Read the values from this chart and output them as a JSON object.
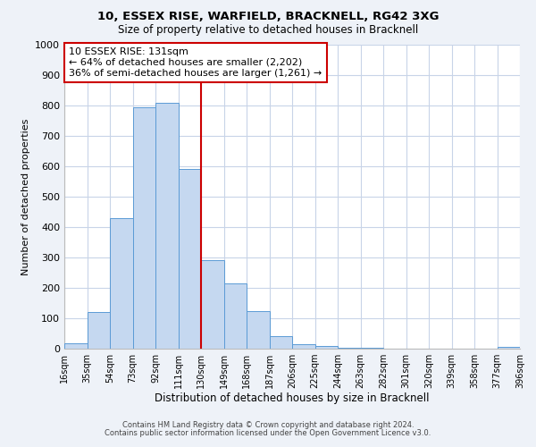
{
  "title1": "10, ESSEX RISE, WARFIELD, BRACKNELL, RG42 3XG",
  "title2": "Size of property relative to detached houses in Bracknell",
  "xlabel": "Distribution of detached houses by size in Bracknell",
  "ylabel": "Number of detached properties",
  "bar_labels": [
    "16sqm",
    "35sqm",
    "54sqm",
    "73sqm",
    "92sqm",
    "111sqm",
    "130sqm",
    "149sqm",
    "168sqm",
    "187sqm",
    "206sqm",
    "225sqm",
    "244sqm",
    "263sqm",
    "282sqm",
    "301sqm",
    "320sqm",
    "339sqm",
    "358sqm",
    "377sqm",
    "396sqm"
  ],
  "bar_values": [
    18,
    120,
    430,
    795,
    810,
    590,
    290,
    215,
    125,
    42,
    15,
    8,
    3,
    2,
    1,
    0,
    0,
    0,
    0,
    5
  ],
  "bar_color": "#c5d8f0",
  "bar_edge_color": "#5b9bd5",
  "vline_color": "#cc0000",
  "annotation_line1": "10 ESSEX RISE: 131sqm",
  "annotation_line2": "← 64% of detached houses are smaller (2,202)",
  "annotation_line3": "36% of semi-detached houses are larger (1,261) →",
  "ylim": [
    0,
    1000
  ],
  "yticks": [
    0,
    100,
    200,
    300,
    400,
    500,
    600,
    700,
    800,
    900,
    1000
  ],
  "footer1": "Contains HM Land Registry data © Crown copyright and database right 2024.",
  "footer2": "Contains public sector information licensed under the Open Government Licence v3.0.",
  "bg_color": "#eef2f8",
  "plot_bg_color": "#ffffff",
  "grid_color": "#c8d4e8"
}
